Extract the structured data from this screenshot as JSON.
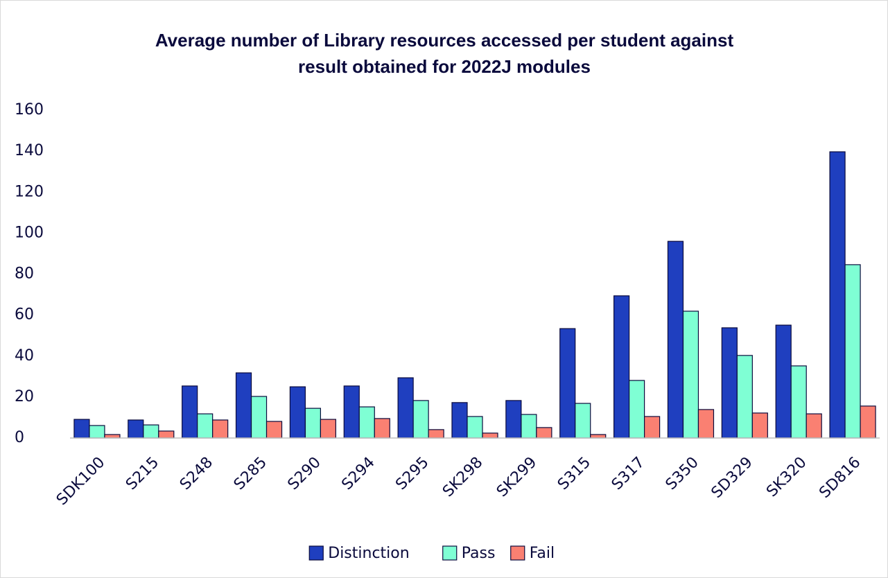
{
  "chart_data": {
    "type": "bar",
    "title": "Average number of Library resources accessed per student against result obtained for 2022J modules",
    "categories": [
      "SDK100",
      "S215",
      "S248",
      "S285",
      "S290",
      "S294",
      "S295",
      "SK298",
      "SK299",
      "S315",
      "S317",
      "S350",
      "SD329",
      "SK320",
      "SD816"
    ],
    "series": [
      {
        "name": "Distinction",
        "color": "#1f3fbf",
        "values": [
          9.1,
          8.8,
          25.4,
          31.8,
          25,
          25.4,
          29.4,
          17.3,
          18.3,
          53.4,
          69.4,
          96,
          53.8,
          55.1,
          139.7
        ]
      },
      {
        "name": "Pass",
        "color": "#7fffd4",
        "values": [
          6.1,
          6.4,
          11.8,
          20.3,
          14.5,
          15.2,
          18.3,
          10.5,
          11.5,
          16.9,
          28.1,
          61.9,
          40.3,
          35.2,
          84.6
        ]
      },
      {
        "name": "Fail",
        "color": "#fa8072",
        "values": [
          1.7,
          3.4,
          8.8,
          8.1,
          9.1,
          9.5,
          4.1,
          2.4,
          5.1,
          1.7,
          10.5,
          13.9,
          12.2,
          11.8,
          15.6
        ]
      }
    ],
    "ylim": [
      0,
      160
    ],
    "yticks": [
      0,
      20,
      40,
      60,
      80,
      100,
      120,
      140,
      160
    ],
    "grid": false,
    "legend": "bottom"
  }
}
